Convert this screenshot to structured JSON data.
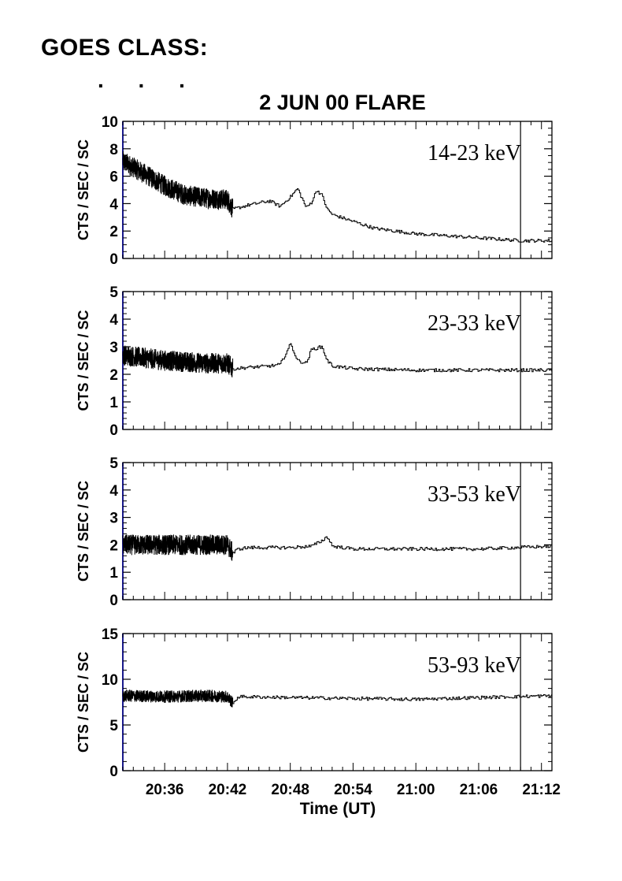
{
  "header": {
    "goes_class": "GOES CLASS:",
    "goes_dots": ". . ."
  },
  "figure": {
    "title": "2 JUN 00 FLARE",
    "xlabel": "Time (UT)",
    "ylabel": "CTS / SEC / SC"
  },
  "colors": {
    "axis": "#000000",
    "left_axis": "#1a1a8c",
    "trace": "#000000"
  },
  "chart_data": [
    {
      "type": "line",
      "band": "14-23 keV",
      "ylabel": "CTS / SEC / SC",
      "ylim": [
        0,
        10
      ],
      "yticks": [
        0,
        2,
        4,
        6,
        8,
        10
      ],
      "xlim": [
        "20:32",
        "21:13"
      ],
      "xticks": [
        "20:36",
        "20:42",
        "20:48",
        "20:54",
        "21:00",
        "21:06",
        "21:12"
      ],
      "x": [
        "20:32",
        "20:34",
        "20:36",
        "20:38",
        "20:40",
        "20:42",
        "20:42:30",
        "20:44",
        "20:46",
        "20:47",
        "20:48",
        "20:48:40",
        "20:49:30",
        "20:50",
        "20:50:30",
        "20:51",
        "20:51:30",
        "20:52",
        "20:54",
        "20:56",
        "21:00",
        "21:06",
        "21:10",
        "21:13"
      ],
      "values": [
        7.1,
        6.2,
        5.3,
        4.6,
        4.4,
        4.3,
        3.6,
        3.9,
        4.2,
        3.8,
        4.5,
        5.1,
        3.7,
        4.1,
        5.0,
        4.6,
        3.6,
        3.2,
        2.7,
        2.2,
        1.8,
        1.5,
        1.3,
        1.3
      ],
      "vline": "21:10"
    },
    {
      "type": "line",
      "band": "23-33 keV",
      "ylabel": "CTS / SEC / SC",
      "ylim": [
        0,
        5
      ],
      "yticks": [
        0,
        1,
        2,
        3,
        4,
        5
      ],
      "xlim": [
        "20:32",
        "21:13"
      ],
      "xticks": [
        "20:36",
        "20:42",
        "20:48",
        "20:54",
        "21:00",
        "21:06",
        "21:12"
      ],
      "x": [
        "20:32",
        "20:36",
        "20:40",
        "20:42",
        "20:42:30",
        "20:44",
        "20:46",
        "20:47",
        "20:48",
        "20:48:40",
        "20:49:30",
        "20:50",
        "20:51",
        "20:51:30",
        "20:52",
        "20:54",
        "21:00",
        "21:06",
        "21:13"
      ],
      "values": [
        2.7,
        2.5,
        2.4,
        2.4,
        2.2,
        2.25,
        2.3,
        2.35,
        3.1,
        2.5,
        2.4,
        2.9,
        3.0,
        2.5,
        2.3,
        2.2,
        2.15,
        2.15,
        2.15
      ],
      "vline": "21:10"
    },
    {
      "type": "line",
      "band": "33-53 keV",
      "ylabel": "CTS / SEC / SC",
      "ylim": [
        0,
        5
      ],
      "yticks": [
        0,
        1,
        2,
        3,
        4,
        5
      ],
      "xlim": [
        "20:32",
        "21:13"
      ],
      "xticks": [
        "20:36",
        "20:42",
        "20:48",
        "20:54",
        "21:00",
        "21:06",
        "21:12"
      ],
      "x": [
        "20:32",
        "20:36",
        "20:40",
        "20:42",
        "20:42:30",
        "20:43",
        "20:44",
        "20:48",
        "20:50",
        "20:51",
        "20:51:30",
        "20:52",
        "20:54",
        "21:00",
        "21:06",
        "21:13"
      ],
      "values": [
        2.0,
        2.0,
        2.0,
        2.0,
        1.7,
        1.85,
        1.9,
        1.9,
        1.95,
        2.15,
        2.3,
        1.95,
        1.85,
        1.85,
        1.85,
        1.95
      ],
      "vline": "21:10"
    },
    {
      "type": "line",
      "band": "53-93 keV",
      "ylabel": "CTS / SEC / SC",
      "ylim": [
        0,
        15
      ],
      "yticks": [
        0,
        5,
        10,
        15
      ],
      "xlim": [
        "20:32",
        "21:13"
      ],
      "xticks": [
        "20:36",
        "20:42",
        "20:48",
        "20:54",
        "21:00",
        "21:06",
        "21:12"
      ],
      "x": [
        "20:32",
        "20:36",
        "20:40",
        "20:42",
        "20:42:30",
        "20:43",
        "20:48",
        "20:54",
        "21:00",
        "21:06",
        "21:13"
      ],
      "values": [
        8.2,
        8.1,
        8.2,
        8.1,
        7.4,
        8.1,
        8.0,
        7.9,
        7.8,
        8.0,
        8.2
      ],
      "vline": "21:10"
    }
  ]
}
